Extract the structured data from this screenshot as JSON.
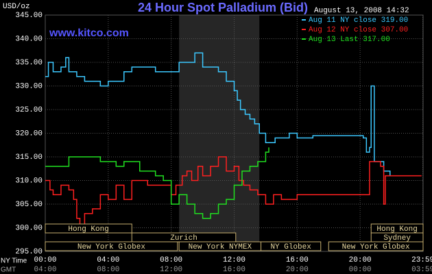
{
  "chart_data": {
    "type": "line",
    "title": "24 Hour Spot Palladium (Bid)",
    "timestamp": "August 13, 2008 14:32",
    "y_label": "USD/oz",
    "watermark": "www.kitco.com",
    "x_label": "NY Time",
    "x2_label": "GMT",
    "xlim": [
      0,
      24
    ],
    "xticks": [
      {
        "value": 0,
        "label": "00:00"
      },
      {
        "value": 4,
        "label": "04:00"
      },
      {
        "value": 8,
        "label": "08:00"
      },
      {
        "value": 12,
        "label": "12:00"
      },
      {
        "value": 16,
        "label": "16:00"
      },
      {
        "value": 20,
        "label": "20:00"
      },
      {
        "value": 23.983,
        "label": "23:59"
      }
    ],
    "x2_tick_labels": [
      "04:00",
      "08:00",
      "12:00",
      "16:00",
      "20:00",
      "00:00",
      "03:59"
    ],
    "ylim": [
      295,
      345
    ],
    "yticks": [
      {
        "value": 295,
        "label": "295.00"
      },
      {
        "value": 300,
        "label": "300.00"
      },
      {
        "value": 305,
        "label": "305.00"
      },
      {
        "value": 310,
        "label": "310.00"
      },
      {
        "value": 315,
        "label": "315.00"
      },
      {
        "value": 320,
        "label": "320.00"
      },
      {
        "value": 325,
        "label": "325.00"
      },
      {
        "value": 330,
        "label": "330.00"
      },
      {
        "value": 335,
        "label": "335.00"
      },
      {
        "value": 340,
        "label": "340.00"
      },
      {
        "value": 345,
        "label": "345.00"
      }
    ],
    "grid": true,
    "highlight_range": [
      8.5,
      13.6
    ],
    "sessions": [
      {
        "label": "Hong Kong",
        "start": 0,
        "end": 5.5,
        "row": 1
      },
      {
        "label": "Zurich",
        "start": 5.5,
        "end": 12.1,
        "row": 2
      },
      {
        "label": "New York Globex",
        "start": 0,
        "end": 8.4,
        "row": 3
      },
      {
        "label": "New York NYMEX",
        "start": 8.5,
        "end": 13.7,
        "row": 3
      },
      {
        "label": "NY Globex",
        "start": 13.7,
        "end": 17.5,
        "row": 3
      },
      {
        "label": "Hong Kong",
        "start": 20.7,
        "end": 24,
        "row": 1
      },
      {
        "label": "Sydney",
        "start": 20.7,
        "end": 24,
        "row": 2
      },
      {
        "label": "New York Globex",
        "start": 18,
        "end": 24,
        "row": 3
      }
    ],
    "series": [
      {
        "name": "Aug 11 NY close 319.00",
        "color": "#3cc8ff",
        "x": [
          0,
          0.2,
          0.5,
          1,
          1.3,
          1.5,
          2,
          2.5,
          3,
          3.5,
          4,
          4.5,
          5,
          5.5,
          6,
          6.5,
          7,
          7.5,
          8,
          8.5,
          9,
          9.3,
          9.5,
          10,
          10.5,
          11,
          11.5,
          12,
          12.2,
          12.4,
          12.7,
          13,
          13.3,
          13.6,
          14,
          14.3,
          14.6,
          15,
          15.5,
          16,
          16.5,
          17,
          18,
          19,
          20,
          20.2,
          20.4,
          20.6,
          20.7,
          20.9,
          21.5,
          21.9
        ],
        "values": [
          332,
          335,
          333,
          334,
          336,
          333,
          332,
          331,
          331,
          330,
          331,
          331,
          333,
          334,
          334,
          334,
          333,
          333,
          333,
          335,
          335,
          335,
          337,
          334,
          334,
          333,
          331,
          329,
          327,
          325,
          324,
          323,
          322,
          320,
          318,
          318,
          319,
          319,
          320,
          319,
          319,
          319.5,
          319.5,
          319.5,
          319.5,
          319,
          316,
          317,
          330,
          314,
          312,
          311
        ]
      },
      {
        "name": "Aug 12 NY close 307.00",
        "color": "#ff2020",
        "x": [
          0,
          0.3,
          0.5,
          1,
          1.5,
          1.8,
          2,
          2.2,
          2.5,
          3,
          3.5,
          4,
          4.5,
          5,
          5.5,
          6,
          6.5,
          7,
          7.5,
          8,
          8.3,
          8.7,
          9,
          9.3,
          9.7,
          10,
          10.5,
          11,
          11.5,
          12,
          12.3,
          12.6,
          13,
          13.5,
          14,
          14.5,
          15,
          16,
          17,
          18,
          19,
          20,
          20.5,
          20.6,
          21,
          21.3,
          21.5,
          21.6,
          22,
          23,
          23.9
        ],
        "values": [
          310,
          308,
          307,
          309,
          308,
          306,
          302,
          300,
          303,
          304,
          307,
          306,
          309,
          306,
          310,
          310,
          309,
          309,
          309,
          307,
          309,
          311,
          312,
          310,
          313,
          311,
          313,
          315,
          312,
          313,
          310,
          309,
          308,
          307,
          305,
          307,
          306,
          307,
          307,
          307,
          307,
          307,
          307,
          314,
          314,
          313,
          305,
          311,
          311,
          311,
          311
        ]
      },
      {
        "name": "Aug 13 Last 317.00",
        "color": "#20e020",
        "x": [
          0,
          1,
          1.5,
          2,
          2.5,
          3,
          3.5,
          4,
          4.5,
          5,
          5.5,
          6,
          6.5,
          7,
          7.5,
          8,
          8.5,
          9,
          9.5,
          10,
          10.5,
          11,
          11.5,
          12,
          12.5,
          13,
          13.5,
          14,
          14.2
        ],
        "values": [
          313,
          313,
          315,
          315,
          315,
          315,
          314,
          314,
          313,
          314,
          314,
          312,
          312,
          311,
          310,
          305,
          307,
          305,
          303,
          302,
          303,
          305,
          306,
          309,
          312,
          313,
          314,
          316,
          317
        ]
      }
    ]
  }
}
